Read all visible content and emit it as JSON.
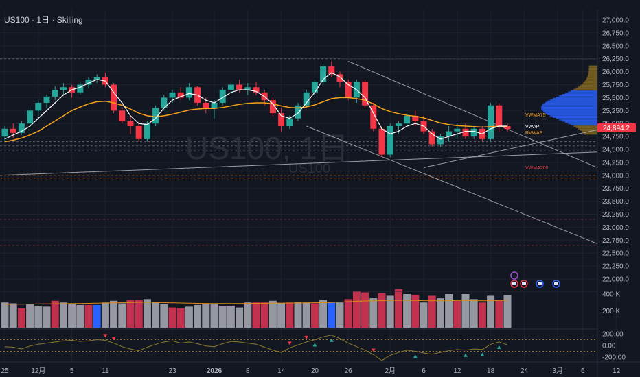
{
  "header": {
    "title": "US100 · 1日 · Skilling"
  },
  "watermark": {
    "main": "US100, 1日",
    "sub": "US100"
  },
  "colors": {
    "background": "#131722",
    "up": "#26a69a",
    "down": "#f23645",
    "vwma75": "#f7a21b",
    "vwap": "#ffffff",
    "vwma200": "#f23645",
    "volume_neutral": "#9598a1",
    "volume_down": "#c2324f",
    "volume_blue": "#2962ff",
    "profile_blue": "#2962ff",
    "profile_gold": "#8a6d1f"
  },
  "chart_data": {
    "type": "candlestick",
    "symbol": "US100",
    "timeframe": "1日",
    "broker": "Skilling",
    "y_ticks": [
      "27,000.0",
      "26,750.0",
      "26,500.0",
      "26,250.0",
      "26,000.0",
      "25,750.0",
      "25,500.0",
      "25,250.0",
      "25,000.0",
      "24,750.0",
      "24,500.0",
      "24,250.0",
      "24,000.0",
      "23,750.0",
      "23,500.0",
      "23,250.0",
      "23,000.0",
      "22,750.0",
      "22,500.0",
      "22,250.0",
      "22,000.0"
    ],
    "y_tick_values": [
      27000,
      26750,
      26500,
      26250,
      26000,
      25750,
      25500,
      25250,
      25000,
      24750,
      24500,
      24250,
      24000,
      23750,
      23500,
      23250,
      23000,
      22750,
      22500,
      22250,
      22000
    ],
    "ylim": [
      21800,
      27100
    ],
    "x_ticks": [
      "25",
      "12月",
      "5",
      "11",
      "23",
      "2026",
      "8",
      "14",
      "20",
      "26",
      "2月",
      "6",
      "12",
      "18",
      "24",
      "3月",
      "6",
      "12"
    ],
    "x_tick_index": [
      0,
      4,
      8,
      12,
      20,
      25,
      29,
      33,
      37,
      41,
      46,
      50,
      54,
      58,
      62,
      66,
      69,
      73
    ],
    "current_price": "24,894.2",
    "current_price_value": 24894.2,
    "indicator_labels": [
      "VWMA75",
      "VWAP",
      "RVWAP",
      "VWMA200"
    ],
    "indicator_values": {
      "VWMA75": 25200,
      "VWAP": 24950,
      "RVWAP": 24870,
      "VWMA200": 24000
    },
    "horizontal_levels": [
      26250,
      24650,
      24570,
      24470,
      24000,
      23950,
      23150,
      22650
    ],
    "candles": [
      [
        24750,
        24950,
        24650,
        24900
      ],
      [
        24900,
        25000,
        24720,
        24820
      ],
      [
        24820,
        25050,
        24780,
        25000
      ],
      [
        25000,
        25300,
        24950,
        25250
      ],
      [
        25250,
        25450,
        25150,
        25400
      ],
      [
        25400,
        25560,
        25300,
        25520
      ],
      [
        25520,
        25720,
        25450,
        25650
      ],
      [
        25650,
        25780,
        25550,
        25700
      ],
      [
        25700,
        25750,
        25500,
        25600
      ],
      [
        25600,
        25800,
        25550,
        25750
      ],
      [
        25750,
        25900,
        25680,
        25850
      ],
      [
        25850,
        25950,
        25780,
        25900
      ],
      [
        25900,
        25980,
        25700,
        25750
      ],
      [
        25750,
        25780,
        25200,
        25250
      ],
      [
        25250,
        25300,
        25000,
        25050
      ],
      [
        25050,
        25150,
        24800,
        24950
      ],
      [
        24950,
        25000,
        24650,
        24700
      ],
      [
        24700,
        25050,
        24650,
        25000
      ],
      [
        25000,
        25350,
        24950,
        25300
      ],
      [
        25300,
        25550,
        25250,
        25500
      ],
      [
        25500,
        25650,
        25400,
        25600
      ],
      [
        25600,
        25700,
        25450,
        25500
      ],
      [
        25500,
        25780,
        25450,
        25700
      ],
      [
        25700,
        25720,
        25350,
        25400
      ],
      [
        25400,
        25500,
        25200,
        25300
      ],
      [
        25300,
        25450,
        25100,
        25400
      ],
      [
        25400,
        25700,
        25350,
        25650
      ],
      [
        25650,
        25800,
        25580,
        25750
      ],
      [
        25750,
        25850,
        25600,
        25650
      ],
      [
        25650,
        25780,
        25550,
        25700
      ],
      [
        25700,
        25800,
        25550,
        25600
      ],
      [
        25600,
        25650,
        25350,
        25450
      ],
      [
        25450,
        25500,
        25150,
        25200
      ],
      [
        25200,
        25300,
        24850,
        24950
      ],
      [
        24950,
        25150,
        24900,
        25100
      ],
      [
        25100,
        25400,
        25050,
        25350
      ],
      [
        25350,
        25650,
        25300,
        25600
      ],
      [
        25600,
        25850,
        25550,
        25800
      ],
      [
        25800,
        26150,
        25750,
        26100
      ],
      [
        26100,
        26200,
        25900,
        25950
      ],
      [
        25950,
        26000,
        25700,
        25800
      ],
      [
        25800,
        25850,
        25450,
        25500
      ],
      [
        25500,
        25850,
        25400,
        25800
      ],
      [
        25800,
        25850,
        25300,
        25350
      ],
      [
        25350,
        25400,
        24850,
        24900
      ],
      [
        24900,
        24950,
        24350,
        24400
      ],
      [
        24400,
        25000,
        24350,
        24950
      ],
      [
        24950,
        25050,
        24800,
        25000
      ],
      [
        25000,
        25200,
        24950,
        25150
      ],
      [
        25150,
        25250,
        24950,
        25050
      ],
      [
        25050,
        25150,
        24800,
        24850
      ],
      [
        24850,
        24900,
        24550,
        24600
      ],
      [
        24600,
        24800,
        24550,
        24750
      ],
      [
        24750,
        24950,
        24650,
        24850
      ],
      [
        24850,
        25000,
        24700,
        24900
      ],
      [
        24900,
        25000,
        24700,
        24750
      ],
      [
        24750,
        24950,
        24700,
        24900
      ],
      [
        24900,
        24950,
        24650,
        24700
      ],
      [
        24700,
        25400,
        24650,
        25350
      ],
      [
        25350,
        25400,
        24850,
        24950
      ],
      [
        24950,
        25000,
        24850,
        24894.2
      ]
    ],
    "vwap_line": [
      24700,
      24780,
      24850,
      24950,
      25100,
      25250,
      25400,
      25550,
      25650,
      25700,
      25780,
      25850,
      25820,
      25600,
      25400,
      25150,
      25000,
      24980,
      25100,
      25300,
      25450,
      25520,
      25580,
      25550,
      25450,
      25400,
      25500,
      25600,
      25650,
      25650,
      25620,
      25520,
      25380,
      25150,
      25100,
      25200,
      25400,
      25600,
      25850,
      25980,
      25900,
      25750,
      25650,
      25500,
      25200,
      24900,
      24800,
      24850,
      24950,
      25000,
      24950,
      24800,
      24700,
      24750,
      24800,
      24850,
      24850,
      24800,
      24900,
      24950,
      24950
    ],
    "vwma75_line": [
      24650,
      24680,
      24720,
      24780,
      24850,
      24950,
      25050,
      25150,
      25250,
      25320,
      25380,
      25420,
      25430,
      25400,
      25350,
      25280,
      25200,
      25150,
      25130,
      25150,
      25180,
      25220,
      25260,
      25280,
      25290,
      25290,
      25310,
      25340,
      25370,
      25390,
      25400,
      25400,
      25380,
      25340,
      25310,
      25300,
      25320,
      25360,
      25420,
      25480,
      25500,
      25500,
      25480,
      25450,
      25380,
      25290,
      25230,
      25190,
      25160,
      25140,
      25110,
      25060,
      25010,
      24980,
      24960,
      24950,
      24940,
      24930,
      24940,
      24950,
      24940
    ],
    "volume": {
      "max": 400000,
      "ticks": [
        "400 K",
        "200 K"
      ],
      "tick_values": [
        400000,
        200000
      ],
      "bars": [
        300000,
        290000,
        230000,
        280000,
        260000,
        250000,
        320000,
        300000,
        280000,
        270000,
        270000,
        270000,
        300000,
        320000,
        290000,
        330000,
        330000,
        340000,
        310000,
        280000,
        240000,
        230000,
        250000,
        270000,
        290000,
        280000,
        260000,
        260000,
        240000,
        300000,
        300000,
        300000,
        320000,
        290000,
        300000,
        310000,
        300000,
        290000,
        330000,
        310000,
        300000,
        340000,
        430000,
        420000,
        350000,
        410000,
        380000,
        460000,
        400000,
        390000,
        300000,
        380000,
        350000,
        400000,
        320000,
        400000,
        340000,
        300000,
        380000,
        330000,
        390000
      ],
      "colors": [
        "n",
        "n",
        "d",
        "n",
        "n",
        "n",
        "d",
        "n",
        "n",
        "n",
        "d",
        "b",
        "n",
        "n",
        "n",
        "d",
        "d",
        "n",
        "n",
        "n",
        "d",
        "d",
        "n",
        "n",
        "n",
        "n",
        "n",
        "n",
        "n",
        "n",
        "d",
        "d",
        "n",
        "n",
        "d",
        "n",
        "n",
        "d",
        "n",
        "b",
        "n",
        "d",
        "d",
        "d",
        "n",
        "d",
        "n",
        "d",
        "n",
        "d",
        "n",
        "d",
        "n",
        "n",
        "d",
        "n",
        "n",
        "d",
        "n",
        "d",
        "n"
      ],
      "avg_line": [
        280000,
        280000,
        280000,
        282000,
        283000,
        284000,
        285000,
        286000,
        287000,
        288000,
        290000,
        292000,
        294000,
        296000,
        298000,
        300000,
        302000,
        302000,
        300000,
        298000,
        296000,
        294000,
        292000,
        290000,
        289000,
        288000,
        288000,
        288000,
        288000,
        289000,
        290000,
        291000,
        292000,
        293000,
        294000,
        295000,
        296000,
        297000,
        298000,
        300000,
        305000,
        310000,
        315000,
        318000,
        320000,
        322000,
        324000,
        326000,
        326000,
        324000,
        322000,
        320000,
        320000,
        322000,
        324000,
        324000,
        322000,
        320000,
        322000,
        324000,
        326000
      ]
    },
    "oscillator": {
      "ticks": [
        "200.00",
        "0.00",
        "-200.00"
      ],
      "tick_values": [
        200,
        0,
        -200
      ],
      "range": [
        -260,
        260
      ],
      "bands": [
        100,
        -100
      ],
      "values": [
        -20,
        -30,
        -60,
        -10,
        20,
        40,
        60,
        80,
        90,
        70,
        80,
        100,
        90,
        40,
        -20,
        -60,
        -90,
        -30,
        20,
        60,
        80,
        40,
        60,
        30,
        -10,
        -20,
        30,
        70,
        60,
        40,
        20,
        -30,
        -80,
        -120,
        -40,
        10,
        60,
        100,
        150,
        180,
        120,
        40,
        -20,
        -80,
        -160,
        -260,
        -170,
        -120,
        -80,
        -100,
        -130,
        -150,
        -120,
        -90,
        -70,
        -80,
        -60,
        -70,
        20,
        60,
        10
      ],
      "sell_markers": [
        12,
        13,
        34,
        36,
        44
      ],
      "buy_markers": [
        37,
        39,
        49,
        55,
        57,
        59
      ]
    }
  }
}
